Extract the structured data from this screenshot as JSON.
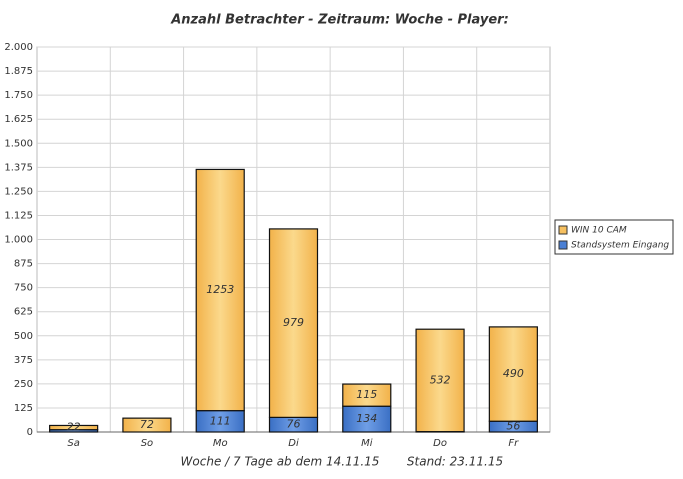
{
  "chart_data": {
    "type": "stacked_bar",
    "title": "Anzahl Betrachter - Zeitraum: Woche - Player:",
    "footer_left": "Woche / 7 Tage ab dem 14.11.15",
    "footer_right": "Stand: 23.11.15",
    "categories": [
      "Sa",
      "So",
      "Mo",
      "Di",
      "Mi",
      "Do",
      "Fr"
    ],
    "series": [
      {
        "name": "Standsystem Eingang",
        "color": "#4a7fd4",
        "values": [
          12,
          0,
          111,
          76,
          134,
          2,
          56
        ]
      },
      {
        "name": "WIN 10 CAM",
        "color": "#f6c060",
        "values": [
          22,
          72,
          1253,
          979,
          115,
          532,
          490
        ]
      }
    ],
    "ylim": [
      0,
      2000
    ],
    "yticks": [
      0,
      125,
      250,
      375,
      500,
      625,
      750,
      875,
      {
        "value": 1000,
        "label": "1.000"
      },
      {
        "value": 1125,
        "label": "1.125"
      },
      {
        "value": 1250,
        "label": "1.250"
      },
      {
        "value": 1375,
        "label": "1.375"
      },
      {
        "value": 1500,
        "label": "1.500"
      },
      {
        "value": 1625,
        "label": "1.625"
      },
      {
        "value": 1750,
        "label": "1.750"
      },
      {
        "value": 1875,
        "label": "1.875"
      },
      {
        "value": 2000,
        "label": "2.000"
      }
    ],
    "grid": true,
    "legend": "right"
  }
}
